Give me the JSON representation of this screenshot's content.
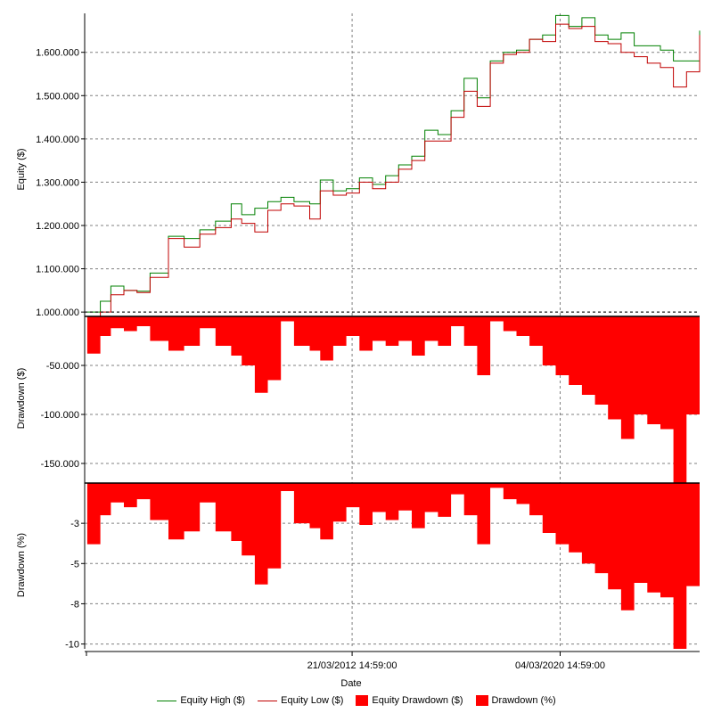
{
  "colors": {
    "equity_high": "#008000",
    "equity_low": "#c00000",
    "equity_drawdown": "#ff0000",
    "drawdown_pct": "#ff0000",
    "grid": "#808080"
  },
  "chart_data": [
    {
      "type": "line",
      "panel": "equity",
      "ylabel": "Equity ($)",
      "ylim": [
        990000,
        1690000
      ],
      "yticks": [
        1000000,
        1100000,
        1200000,
        1300000,
        1400000,
        1500000,
        1600000
      ],
      "ytick_labels": [
        "1.000.000",
        "1.100.000",
        "1.200.000",
        "1.300.000",
        "1.400.000",
        "1.500.000",
        "1.600.000"
      ],
      "grid": true,
      "series": [
        {
          "name": "Equity High ($)",
          "x": [
            2002.1,
            2002.6,
            2003.0,
            2003.5,
            2004.0,
            2004.5,
            2005.2,
            2005.8,
            2006.4,
            2007.0,
            2007.6,
            2008.0,
            2008.5,
            2009.0,
            2009.5,
            2010.0,
            2010.6,
            2011.0,
            2011.5,
            2012.0,
            2012.5,
            2013.0,
            2013.5,
            2014.0,
            2014.5,
            2015.0,
            2015.5,
            2016.0,
            2016.5,
            2017.0,
            2017.5,
            2018.0,
            2018.5,
            2019.0,
            2019.5,
            2020.0,
            2020.5,
            2021.0,
            2021.5,
            2022.0,
            2022.5,
            2023.0,
            2023.5,
            2024.0,
            2024.5,
            2025.0,
            2025.5
          ],
          "y": [
            1000000,
            1025000,
            1060000,
            1050000,
            1048000,
            1090000,
            1175000,
            1170000,
            1190000,
            1210000,
            1250000,
            1225000,
            1240000,
            1255000,
            1265000,
            1255000,
            1250000,
            1305000,
            1280000,
            1285000,
            1310000,
            1295000,
            1315000,
            1340000,
            1360000,
            1420000,
            1410000,
            1465000,
            1540000,
            1495000,
            1580000,
            1600000,
            1605000,
            1630000,
            1640000,
            1685000,
            1660000,
            1680000,
            1640000,
            1630000,
            1645000,
            1615000,
            1615000,
            1605000,
            1580000,
            1580000,
            1650000
          ]
        },
        {
          "name": "Equity Low ($)",
          "x": [
            2002.1,
            2002.6,
            2003.0,
            2003.5,
            2004.0,
            2004.5,
            2005.2,
            2005.8,
            2006.4,
            2007.0,
            2007.6,
            2008.0,
            2008.5,
            2009.0,
            2009.5,
            2010.0,
            2010.6,
            2011.0,
            2011.5,
            2012.0,
            2012.5,
            2013.0,
            2013.5,
            2014.0,
            2014.5,
            2015.0,
            2015.5,
            2016.0,
            2016.5,
            2017.0,
            2017.5,
            2018.0,
            2018.5,
            2019.0,
            2019.5,
            2020.0,
            2020.5,
            2021.0,
            2021.5,
            2022.0,
            2022.5,
            2023.0,
            2023.5,
            2024.0,
            2024.5,
            2025.0,
            2025.5
          ],
          "y": [
            990000,
            1000000,
            1040000,
            1050000,
            1045000,
            1080000,
            1170000,
            1150000,
            1180000,
            1195000,
            1215000,
            1205000,
            1185000,
            1235000,
            1250000,
            1245000,
            1215000,
            1280000,
            1270000,
            1275000,
            1300000,
            1285000,
            1300000,
            1330000,
            1350000,
            1395000,
            1395000,
            1450000,
            1510000,
            1475000,
            1575000,
            1595000,
            1600000,
            1630000,
            1625000,
            1665000,
            1655000,
            1660000,
            1625000,
            1620000,
            1600000,
            1590000,
            1575000,
            1565000,
            1520000,
            1555000,
            1640000
          ]
        }
      ]
    },
    {
      "type": "area",
      "panel": "drawdown-usd",
      "ylabel": "Drawdown ($)",
      "ylim": [
        -170000,
        0
      ],
      "yticks": [
        -50000,
        -100000,
        -150000
      ],
      "ytick_labels": [
        "-50.000",
        "-100.000",
        "-150.000"
      ],
      "grid": true,
      "series": [
        {
          "name": "Equity Drawdown ($)",
          "x": [
            2002.1,
            2002.6,
            2003.0,
            2003.5,
            2004.0,
            2004.5,
            2005.2,
            2005.8,
            2006.4,
            2007.0,
            2007.6,
            2008.0,
            2008.5,
            2009.0,
            2009.5,
            2010.0,
            2010.6,
            2011.0,
            2011.5,
            2012.0,
            2012.5,
            2013.0,
            2013.5,
            2014.0,
            2014.5,
            2015.0,
            2015.5,
            2016.0,
            2016.5,
            2017.0,
            2017.5,
            2018.0,
            2018.5,
            2019.0,
            2019.5,
            2020.0,
            2020.5,
            2021.0,
            2021.5,
            2022.0,
            2022.5,
            2023.0,
            2023.5,
            2024.0,
            2024.5,
            2025.0,
            2025.5
          ],
          "y": [
            -38000,
            -20000,
            -12000,
            -15000,
            -10000,
            -25000,
            -35000,
            -30000,
            -12000,
            -30000,
            -40000,
            -50000,
            -78000,
            -65000,
            -5000,
            -30000,
            -35000,
            -45000,
            -30000,
            -20000,
            -35000,
            -25000,
            -30000,
            -25000,
            -40000,
            -25000,
            -30000,
            -10000,
            -30000,
            -60000,
            -5000,
            -15000,
            -20000,
            -30000,
            -50000,
            -60000,
            -70000,
            -80000,
            -90000,
            -105000,
            -125000,
            -100000,
            -110000,
            -115000,
            -170000,
            -100000,
            -45000
          ]
        }
      ]
    },
    {
      "type": "area",
      "panel": "drawdown-pct",
      "ylabel": "Drawdown (%)",
      "xlabel": "Date",
      "ylim": [
        -10.3,
        0
      ],
      "yticks": [
        -2.5,
        -5,
        -7.5,
        -10
      ],
      "ytick_labels": [
        "-3",
        "-5",
        "-8",
        "-10"
      ],
      "xticks": [
        2012.22,
        2020.17
      ],
      "xtick_labels": [
        "21/03/2012 14:59:00",
        "04/03/2020 14:59:00"
      ],
      "xlim": [
        2002.0,
        2025.5
      ],
      "grid": true,
      "series": [
        {
          "name": "Drawdown (%)",
          "x": [
            2002.1,
            2002.6,
            2003.0,
            2003.5,
            2004.0,
            2004.5,
            2005.2,
            2005.8,
            2006.4,
            2007.0,
            2007.6,
            2008.0,
            2008.5,
            2009.0,
            2009.5,
            2010.0,
            2010.6,
            2011.0,
            2011.5,
            2012.0,
            2012.5,
            2013.0,
            2013.5,
            2014.0,
            2014.5,
            2015.0,
            2015.5,
            2016.0,
            2016.5,
            2017.0,
            2017.5,
            2018.0,
            2018.5,
            2019.0,
            2019.5,
            2020.0,
            2020.5,
            2021.0,
            2021.5,
            2022.0,
            2022.5,
            2023.0,
            2023.5,
            2024.0,
            2024.5,
            2025.0,
            2025.5
          ],
          "y": [
            -3.8,
            -2.0,
            -1.2,
            -1.5,
            -1.0,
            -2.3,
            -3.5,
            -3.0,
            -1.2,
            -3.0,
            -3.6,
            -4.5,
            -6.3,
            -5.3,
            -0.5,
            -2.5,
            -2.8,
            -3.5,
            -2.4,
            -1.5,
            -2.6,
            -1.8,
            -2.3,
            -1.7,
            -2.8,
            -1.8,
            -2.1,
            -0.7,
            -2.0,
            -3.8,
            -0.3,
            -1.0,
            -1.3,
            -2.0,
            -3.1,
            -3.8,
            -4.3,
            -5.0,
            -5.6,
            -6.6,
            -7.9,
            -6.2,
            -6.8,
            -7.1,
            -10.3,
            -6.4,
            -2.8
          ]
        }
      ]
    }
  ],
  "legend": {
    "items": [
      {
        "label": "Equity High ($)",
        "kind": "line",
        "color": "#008000"
      },
      {
        "label": "Equity Low ($)",
        "kind": "line",
        "color": "#c00000"
      },
      {
        "label": "Equity Drawdown ($)",
        "kind": "box",
        "color": "#ff0000"
      },
      {
        "label": "Drawdown (%)",
        "kind": "box",
        "color": "#ff0000"
      }
    ]
  }
}
